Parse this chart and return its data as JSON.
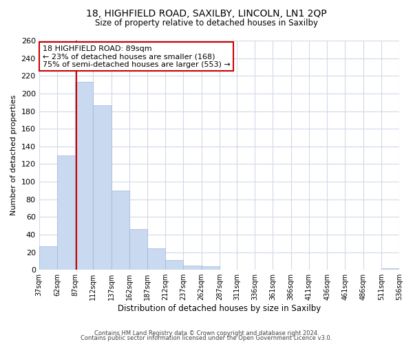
{
  "title": "18, HIGHFIELD ROAD, SAXILBY, LINCOLN, LN1 2QP",
  "subtitle": "Size of property relative to detached houses in Saxilby",
  "xlabel": "Distribution of detached houses by size in Saxilby",
  "ylabel": "Number of detached properties",
  "footnote1": "Contains HM Land Registry data © Crown copyright and database right 2024.",
  "footnote2": "Contains public sector information licensed under the Open Government Licence v3.0.",
  "bar_edges": [
    37,
    62,
    87,
    112,
    137,
    162,
    187,
    212,
    237,
    262,
    287,
    311,
    336,
    361,
    386,
    411,
    436,
    461,
    486,
    511,
    536
  ],
  "bar_heights": [
    27,
    130,
    213,
    187,
    90,
    46,
    24,
    11,
    5,
    4,
    0,
    0,
    0,
    0,
    0,
    0,
    0,
    0,
    0,
    2
  ],
  "bar_color": "#c8d9f0",
  "bar_edgecolor": "#a0b8d8",
  "vline_color": "#cc0000",
  "vline_x": 89,
  "annotation_line1": "18 HIGHFIELD ROAD: 89sqm",
  "annotation_line2": "← 23% of detached houses are smaller (168)",
  "annotation_line3": "75% of semi-detached houses are larger (553) →",
  "annotation_bbox_edgecolor": "#cc0000",
  "annotation_bbox_facecolor": "#ffffff",
  "ylim": [
    0,
    260
  ],
  "yticks": [
    0,
    20,
    40,
    60,
    80,
    100,
    120,
    140,
    160,
    180,
    200,
    220,
    240,
    260
  ],
  "tick_labels": [
    "37sqm",
    "62sqm",
    "87sqm",
    "112sqm",
    "137sqm",
    "162sqm",
    "187sqm",
    "212sqm",
    "237sqm",
    "262sqm",
    "287sqm",
    "311sqm",
    "336sqm",
    "361sqm",
    "386sqm",
    "411sqm",
    "436sqm",
    "461sqm",
    "486sqm",
    "511sqm",
    "536sqm"
  ],
  "background_color": "#ffffff",
  "grid_color": "#d0d8e8"
}
